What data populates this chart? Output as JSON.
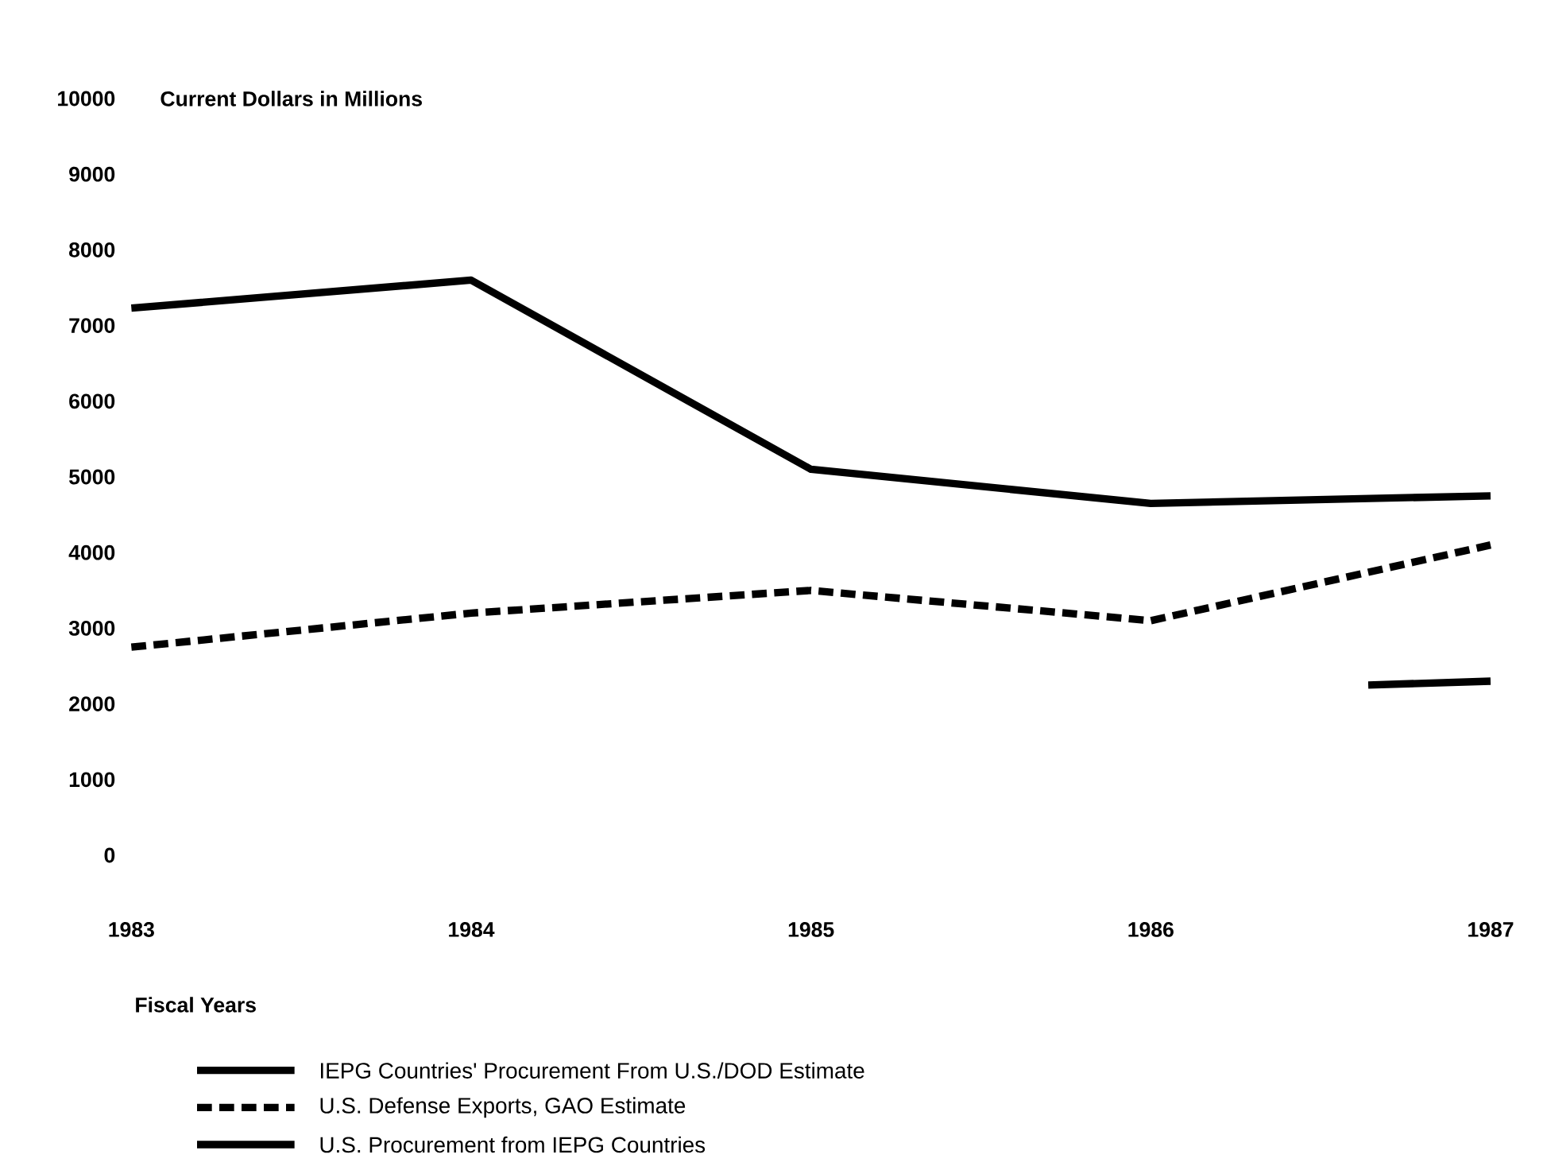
{
  "chart_data": {
    "type": "line",
    "ylabel": "Current Dollars in Millions",
    "xlabel": "Fiscal Years",
    "x": [
      1983,
      1984,
      1985,
      1986,
      1987
    ],
    "xlim": [
      1983,
      1987
    ],
    "xticks": [
      1983,
      1984,
      1985,
      1986,
      1987
    ],
    "ylim": [
      0,
      10000
    ],
    "yticks": [
      0,
      1000,
      2000,
      3000,
      4000,
      5000,
      6000,
      7000,
      8000,
      9000,
      10000
    ],
    "grid": false,
    "legend": "bottom",
    "series": [
      {
        "name": "IEPG Countries' Procurement From U.S./DOD Estimate",
        "color": "#000000",
        "line_style": "solid",
        "values": [
          7230,
          7600,
          5100,
          4650,
          4750
        ]
      },
      {
        "name": "U.S. Defense Exports, GAO Estimate",
        "color": "#000000",
        "line_style": "dashed",
        "values": [
          2750,
          3200,
          3500,
          3100,
          4100
        ]
      },
      {
        "name": "U.S. Procurement from IEPG Countries",
        "color": "#000000",
        "line_style": "solid",
        "x": [
          1986.64,
          1987
        ],
        "values": [
          2250,
          2300
        ]
      }
    ]
  }
}
